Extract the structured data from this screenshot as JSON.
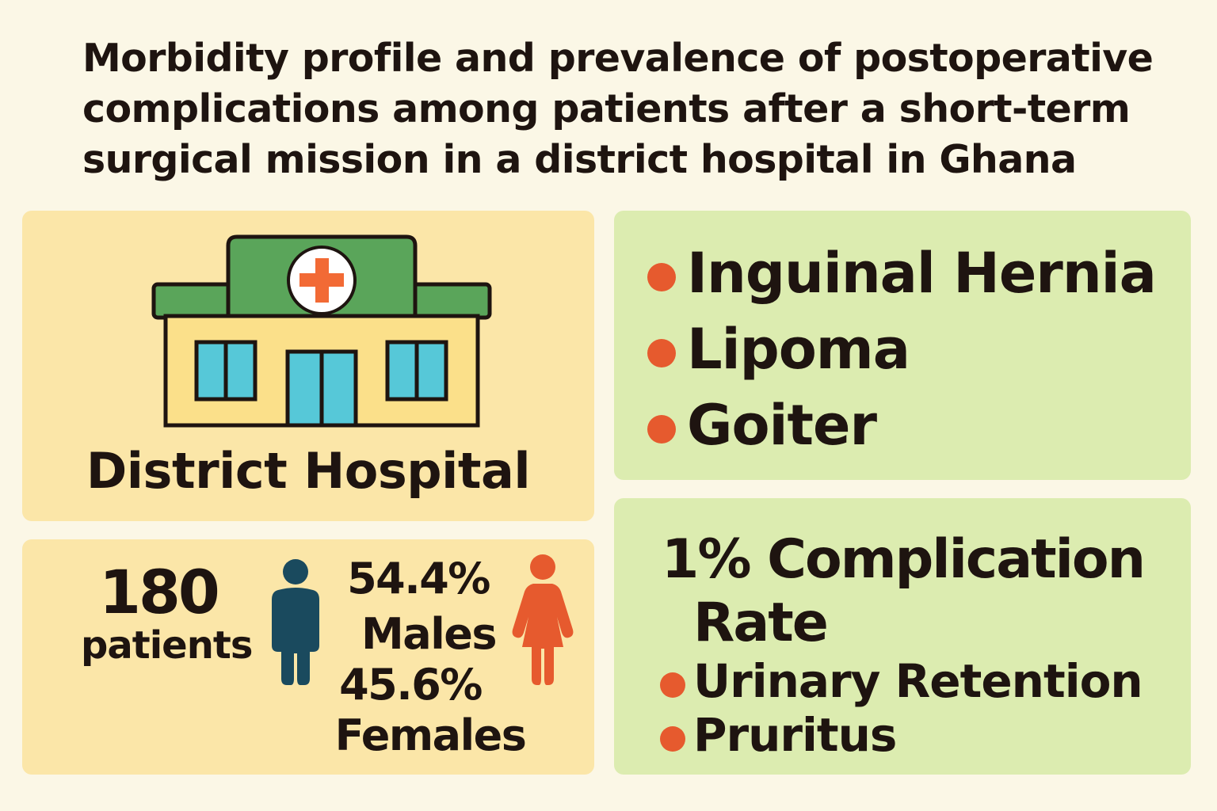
{
  "title": {
    "line1": "Morbidity profile and prevalence of postoperative",
    "line2": "complications among patients after a short-term",
    "line3": "surgical mission in a district hospital in Ghana"
  },
  "hospital": {
    "label": "District Hospital",
    "icon": "hospital-building-icon",
    "colors": {
      "roof": "#5aa55a",
      "wall": "#fbe08a",
      "window": "#56c8d8",
      "cross": "#f26a35",
      "outline": "#1e1410"
    }
  },
  "demographics": {
    "patient_count": "180",
    "patient_label": "patients",
    "male_percent": "54.4%",
    "male_label": "Males",
    "female_percent": "45.6%",
    "female_label": "Females",
    "colors": {
      "male": "#1a4a5e",
      "female": "#e65a2e"
    }
  },
  "morbidity": {
    "items": [
      "Inguinal Hernia",
      "Lipoma",
      "Goiter"
    ]
  },
  "complications": {
    "rate_line1": "1% Complication",
    "rate_line2": "Rate",
    "items": [
      "Urinary Retention",
      "Pruritus"
    ],
    "bullet_color": "#e65a2e"
  }
}
